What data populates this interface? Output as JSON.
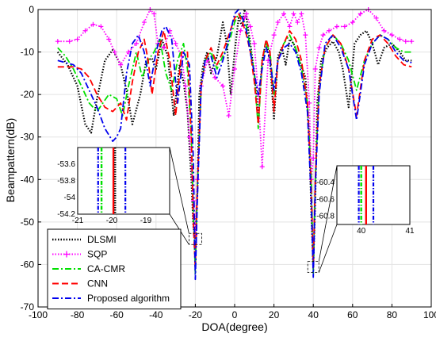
{
  "chart_data": {
    "type": "line",
    "xlabel": "DOA(degree)",
    "ylabel": "Beampattern(dB)",
    "xlim": [
      -100,
      100
    ],
    "ylim": [
      -70,
      0
    ],
    "xticks": [
      -100,
      -80,
      -60,
      -40,
      -20,
      0,
      20,
      40,
      60,
      80,
      100
    ],
    "yticks": [
      -70,
      -60,
      -50,
      -40,
      -30,
      -20,
      -10,
      0
    ],
    "grid": true,
    "legend_position": "bottom-left",
    "series": [
      {
        "name": "DLSMI",
        "color": "#000000",
        "style": "dotted",
        "x": [
          -90,
          -85,
          -80,
          -76,
          -73,
          -70,
          -66,
          -62,
          -58,
          -55,
          -52,
          -48,
          -45,
          -42,
          -40,
          -37,
          -34,
          -31,
          -28,
          -26,
          -24,
          -22,
          -21,
          -20,
          -19,
          -18,
          -16,
          -14,
          -12,
          -9,
          -6,
          -4,
          -2,
          0,
          2,
          4,
          5,
          6,
          8,
          10,
          12,
          14,
          16,
          18,
          20,
          22,
          24,
          26,
          28,
          30,
          33,
          36,
          38,
          39,
          40,
          41,
          42,
          44,
          47,
          50,
          53,
          55,
          58,
          61,
          64,
          67,
          70,
          73,
          76,
          80,
          84,
          87,
          90
        ],
        "y": [
          -10,
          -13,
          -18,
          -27,
          -29,
          -21,
          -12,
          -9.5,
          -13,
          -19,
          -27,
          -20,
          -12,
          -11.5,
          -14,
          -7,
          -11,
          -25,
          -13,
          -17,
          -24,
          -40,
          -51,
          -54.1,
          -44,
          -20,
          -13,
          -10,
          -15,
          -11,
          -3,
          -8,
          -20,
          -10,
          -2,
          -4,
          0,
          -2,
          -8,
          -15,
          -25,
          -12,
          -7.5,
          -12,
          -26,
          -11,
          -9,
          -13,
          -7,
          -8,
          -12,
          -16,
          -30,
          -48,
          -60.6,
          -45,
          -22,
          -12,
          -9,
          -7.5,
          -10,
          -14,
          -23,
          -8,
          -6,
          -5,
          -8,
          -13,
          -9,
          -8,
          -10,
          -12,
          -12
        ]
      },
      {
        "name": "SQP",
        "color": "#ff00ff",
        "style": "dotted-plus",
        "x": [
          -90,
          -84,
          -80,
          -76,
          -72,
          -68,
          -64,
          -61,
          -58,
          -54,
          -50,
          -46,
          -43,
          -41,
          -39,
          -36,
          -33,
          -30,
          -27,
          -25,
          -23,
          -21,
          -20,
          -19,
          -17,
          -14,
          -10,
          -6,
          -3,
          0,
          3,
          5,
          6,
          8,
          10,
          12,
          14,
          17,
          20,
          22,
          25,
          28,
          30,
          32,
          34,
          36,
          38,
          39,
          40,
          41,
          43,
          45,
          48,
          52,
          56,
          60,
          64,
          68,
          72,
          76,
          80,
          84,
          87,
          90
        ],
        "y": [
          -7.5,
          -7.5,
          -7,
          -5,
          -3.5,
          -4,
          -7,
          -10,
          -13,
          -10,
          -8,
          -3,
          0,
          -1,
          -8,
          -9,
          -5,
          -8,
          -11,
          -18,
          -30,
          -45,
          -53,
          -40,
          -18,
          -12,
          -16,
          -18,
          -25,
          -14,
          -5,
          -2,
          -1,
          -4,
          -8,
          -20,
          -37,
          -12,
          -6,
          -3,
          -1,
          -4,
          -1,
          -3,
          -1,
          -6,
          -22,
          -40,
          -35,
          -14,
          -9,
          -6,
          -5,
          -4,
          -4,
          -3,
          -1,
          0,
          -2,
          -5,
          -6,
          -7,
          -7.5,
          -7.5
        ]
      },
      {
        "name": "CA-CMR",
        "color": "#00e000",
        "style": "dash-dot",
        "x": [
          -90,
          -86,
          -82,
          -78,
          -74,
          -70,
          -67,
          -64,
          -60,
          -57,
          -54,
          -50,
          -47,
          -44,
          -41,
          -38,
          -35,
          -32,
          -29,
          -26,
          -24,
          -22,
          -21,
          -20,
          -19,
          -17,
          -15,
          -12,
          -9,
          -6,
          -3,
          0,
          2,
          4,
          6,
          8,
          10,
          12,
          14,
          16,
          18,
          20,
          22,
          25,
          28,
          31,
          34,
          37,
          39,
          40,
          41,
          43,
          46,
          50,
          54,
          58,
          62,
          66,
          70,
          74,
          78,
          82,
          86,
          90
        ],
        "y": [
          -9,
          -11,
          -14,
          -18,
          -22,
          -24,
          -22,
          -20,
          -21,
          -25,
          -18,
          -10,
          -16,
          -12,
          -10,
          -7,
          -15,
          -19,
          -12,
          -8,
          -14,
          -30,
          -48,
          -62,
          -42,
          -18,
          -12,
          -10,
          -14,
          -11,
          -8,
          -3,
          -1,
          -2,
          -4,
          -9,
          -15,
          -28,
          -12,
          -8,
          -10,
          -20,
          -12,
          -8,
          -6,
          -9,
          -14,
          -22,
          -40,
          -62,
          -40,
          -18,
          -9,
          -6,
          -8,
          -12,
          -19,
          -12,
          -8,
          -6,
          -7,
          -9,
          -10,
          -10
        ]
      },
      {
        "name": "CNN",
        "color": "#ff0000",
        "style": "dashed",
        "x": [
          -90,
          -86,
          -82,
          -78,
          -74,
          -70,
          -66,
          -62,
          -58,
          -55,
          -52,
          -49,
          -46,
          -44,
          -42,
          -39,
          -36,
          -33,
          -30,
          -27,
          -24,
          -22,
          -21,
          -20,
          -19,
          -17,
          -15,
          -12,
          -9,
          -6,
          -3,
          0,
          2,
          4,
          6,
          8,
          10,
          12,
          14,
          16,
          18,
          20,
          22,
          25,
          28,
          31,
          34,
          37,
          39,
          40,
          41,
          43,
          46,
          50,
          54,
          58,
          62,
          66,
          70,
          74,
          78,
          82,
          86,
          90
        ],
        "y": [
          -13.5,
          -13.5,
          -13.5,
          -14,
          -16,
          -20,
          -23,
          -24,
          -22,
          -26,
          -17,
          -10,
          -7,
          -12,
          -20,
          -10,
          -5,
          -12,
          -25,
          -10,
          -10,
          -30,
          -50,
          -61,
          -42,
          -18,
          -12,
          -9,
          -13,
          -10,
          -6,
          -2,
          -1,
          -3,
          -6,
          -10,
          -17,
          -27,
          -12,
          -7,
          -10,
          -24,
          -12,
          -8,
          -5,
          -7,
          -12,
          -22,
          -42,
          -60.8,
          -40,
          -18,
          -9,
          -6,
          -8,
          -14,
          -25,
          -12,
          -7,
          -6,
          -8,
          -11,
          -13,
          -13.5
        ]
      },
      {
        "name": "Proposed algorithm",
        "color": "#0000ee",
        "style": "dash-dot",
        "x": [
          -90,
          -86,
          -82,
          -78,
          -74,
          -70,
          -66,
          -62,
          -60,
          -58,
          -55,
          -52,
          -49,
          -46,
          -43,
          -40,
          -37,
          -35,
          -32,
          -29,
          -26,
          -23,
          -21,
          -20,
          -19,
          -17,
          -15,
          -12,
          -9,
          -6,
          -3,
          0,
          2,
          4,
          6,
          8,
          10,
          12,
          14,
          16,
          18,
          20,
          22,
          25,
          28,
          31,
          34,
          37,
          39,
          40,
          41,
          43,
          46,
          50,
          54,
          58,
          62,
          66,
          70,
          74,
          78,
          82,
          86,
          90
        ],
        "y": [
          -12,
          -12.5,
          -13,
          -15,
          -19,
          -23,
          -28,
          -31,
          -30,
          -28,
          -15,
          -8,
          -6,
          -10,
          -18,
          -10,
          -5,
          -4,
          -7,
          -22,
          -10,
          -13,
          -35,
          -63.5,
          -45,
          -18,
          -12,
          -11,
          -16,
          -12,
          -7,
          -1,
          0,
          -2,
          -5,
          -10,
          -15,
          -20,
          -14,
          -9,
          -12,
          -19,
          -12,
          -9,
          -8,
          -10,
          -15,
          -24,
          -45,
          -63,
          -42,
          -20,
          -8,
          -6,
          -9,
          -14,
          -26,
          -13,
          -8,
          -6,
          -7,
          -10,
          -12,
          -12.5
        ]
      }
    ],
    "insets": [
      {
        "xlim": [
          -21,
          -18.3
        ],
        "ylim": [
          -54.2,
          -53.4
        ],
        "xticks": [
          -21,
          -20,
          -19
        ],
        "yticks": [
          -53.6,
          -53.8,
          -54,
          -54.2
        ],
        "ytick_labels": [
          "-53.6",
          "-53.8",
          "-54",
          "-54.2"
        ],
        "marks": [
          {
            "series": "Proposed algorithm",
            "x": -20.4,
            "color": "#0000ee"
          },
          {
            "series": "Proposed algorithm",
            "x": -19.6,
            "color": "#0000ee"
          },
          {
            "series": "CA-CMR",
            "x": -20.3,
            "color": "#00e000"
          },
          {
            "series": "CNN",
            "x": -19.95,
            "color": "#ff0000"
          },
          {
            "series": "DLSMI",
            "x": -19.9,
            "color": "#000000"
          }
        ]
      },
      {
        "xlim": [
          39.5,
          41
        ],
        "ylim": [
          -60.9,
          -60.2
        ],
        "xticks": [
          40,
          41
        ],
        "yticks": [
          -60.4,
          -60.6,
          -60.8
        ],
        "ytick_labels": [
          "-60.4",
          "-60.6",
          "-60.8"
        ],
        "marks": [
          {
            "series": "Proposed algorithm",
            "x": 39.95,
            "color": "#0000ee"
          },
          {
            "series": "Proposed algorithm",
            "x": 40.25,
            "color": "#0000ee"
          },
          {
            "series": "CA-CMR",
            "x": 40.0,
            "color": "#00e000"
          },
          {
            "series": "CNN",
            "x": 40.1,
            "color": "#ff0000"
          }
        ]
      }
    ]
  }
}
